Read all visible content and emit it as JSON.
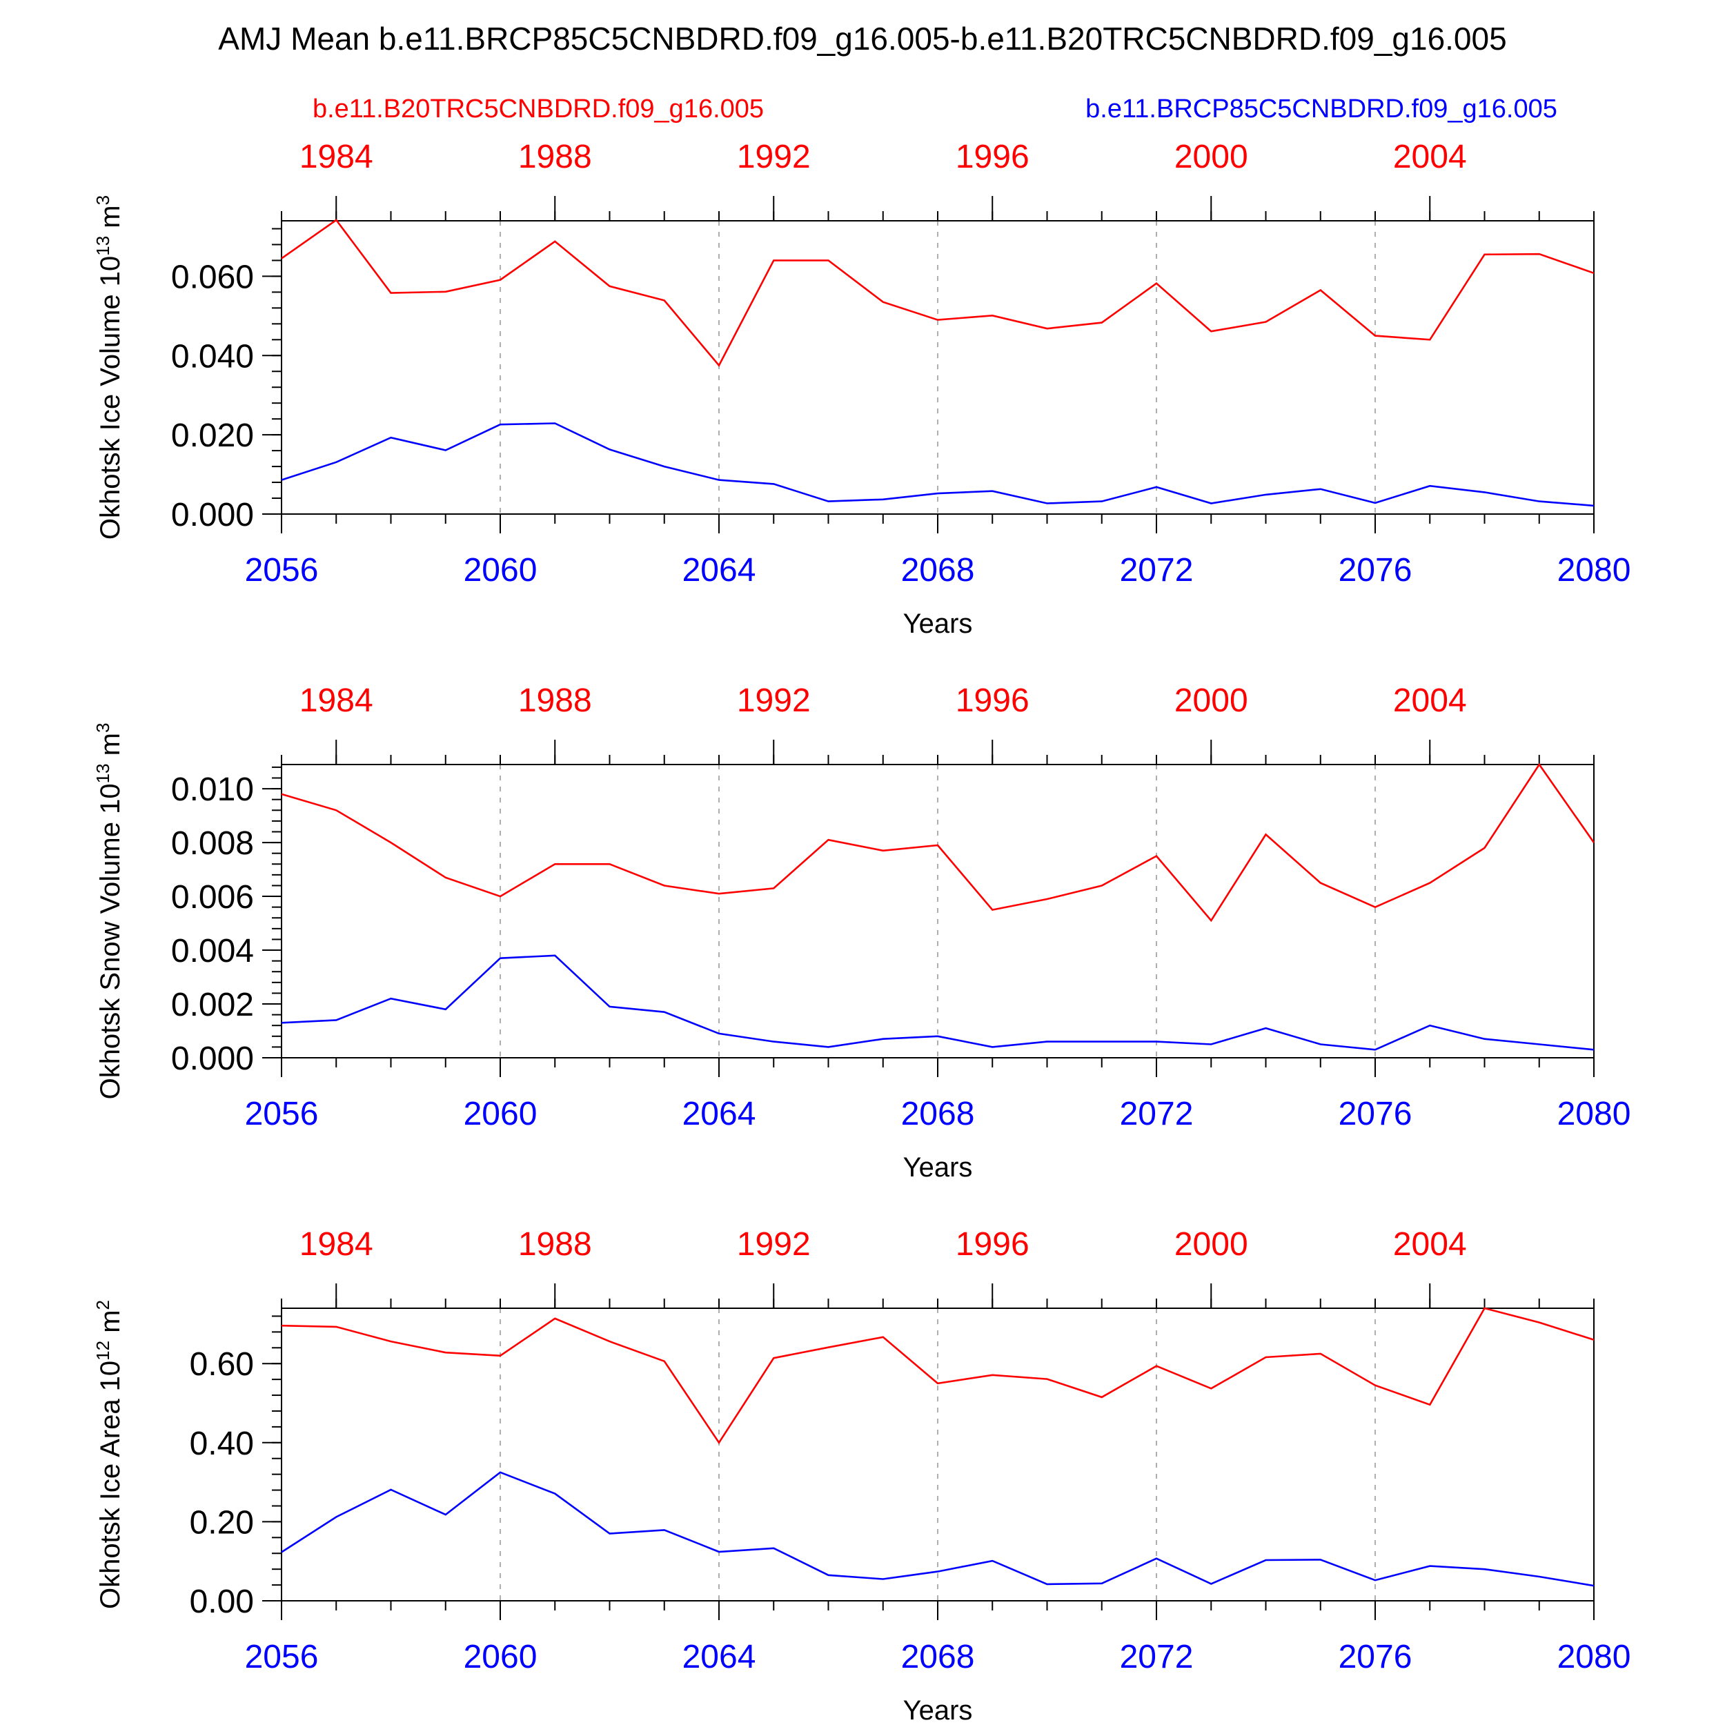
{
  "figure": {
    "title": "AMJ Mean b.e11.BRCP85C5CNBDRD.f09_g16.005-b.e11.B20TRC5CNBDRD.f09_g16.005",
    "legend_left": "b.e11.B20TRC5CNBDRD.f09_g16.005",
    "legend_right": "b.e11.BRCP85C5CNBDRD.f09_g16.005",
    "xlabel": "Years",
    "colors": {
      "historical": "#ff0000",
      "future": "#0000ff",
      "axis": "#000000",
      "grid": "#9a9a9a"
    }
  },
  "chart_data": [
    {
      "type": "line",
      "ylabel_main": "Okhotsk Ice Volume 10",
      "ylabel_exp": "13",
      "ylabel_unit": " m",
      "ylabel_unit_exp": "3",
      "ylim": [
        0,
        0.074
      ],
      "ytick_values": [
        0,
        0.02,
        0.04,
        0.06
      ],
      "ytick_labels": [
        "0.000",
        "0.020",
        "0.040",
        "0.060"
      ],
      "yminor_step": 0.004,
      "x_bottom": [
        2056,
        2057,
        2058,
        2059,
        2060,
        2061,
        2062,
        2063,
        2064,
        2065,
        2066,
        2067,
        2068,
        2069,
        2070,
        2071,
        2072,
        2073,
        2074,
        2075,
        2076,
        2077,
        2078,
        2079,
        2080
      ],
      "xtick_bottom": [
        2056,
        2060,
        2064,
        2068,
        2072,
        2076,
        2080
      ],
      "xtick_top": [
        1984,
        1988,
        1992,
        1996,
        2000,
        2004
      ],
      "x_top_offset": -73,
      "series": [
        {
          "name": "b.e11.B20TRC5CNBDRD.f09_g16.005",
          "color": "#ff0000",
          "values": [
            0.0645,
            0.0742,
            0.0558,
            0.0561,
            0.0591,
            0.0688,
            0.0575,
            0.0539,
            0.0375,
            0.064,
            0.064,
            0.0535,
            0.049,
            0.0501,
            0.0468,
            0.0483,
            0.0582,
            0.0461,
            0.0485,
            0.0565,
            0.045,
            0.044,
            0.0655,
            0.0656,
            0.0608
          ]
        },
        {
          "name": "b.e11.BRCP85C5CNBDRD.f09_g16.005",
          "color": "#0000ff",
          "values": [
            0.0086,
            0.0131,
            0.0193,
            0.0161,
            0.0226,
            0.0229,
            0.0163,
            0.012,
            0.0086,
            0.0076,
            0.0032,
            0.0037,
            0.0052,
            0.0058,
            0.0027,
            0.0032,
            0.0068,
            0.0027,
            0.0049,
            0.0063,
            0.0028,
            0.0071,
            0.0055,
            0.0032,
            0.0021
          ]
        }
      ]
    },
    {
      "type": "line",
      "ylabel_main": "Okhotsk Snow Volume 10",
      "ylabel_exp": "13",
      "ylabel_unit": " m",
      "ylabel_unit_exp": "3",
      "ylim": [
        0,
        0.0109
      ],
      "ytick_values": [
        0,
        0.002,
        0.004,
        0.006,
        0.008,
        0.01
      ],
      "ytick_labels": [
        "0.000",
        "0.002",
        "0.004",
        "0.006",
        "0.008",
        "0.010"
      ],
      "yminor_step": 0.0004,
      "x_bottom": [
        2056,
        2057,
        2058,
        2059,
        2060,
        2061,
        2062,
        2063,
        2064,
        2065,
        2066,
        2067,
        2068,
        2069,
        2070,
        2071,
        2072,
        2073,
        2074,
        2075,
        2076,
        2077,
        2078,
        2079,
        2080
      ],
      "xtick_bottom": [
        2056,
        2060,
        2064,
        2068,
        2072,
        2076,
        2080
      ],
      "xtick_top": [
        1984,
        1988,
        1992,
        1996,
        2000,
        2004
      ],
      "x_top_offset": -73,
      "series": [
        {
          "name": "b.e11.B20TRC5CNBDRD.f09_g16.005",
          "color": "#ff0000",
          "values": [
            0.0098,
            0.0092,
            0.008,
            0.0067,
            0.006,
            0.0072,
            0.0072,
            0.0064,
            0.0061,
            0.0063,
            0.0081,
            0.0077,
            0.0079,
            0.0055,
            0.0059,
            0.0064,
            0.0075,
            0.0051,
            0.0083,
            0.0065,
            0.0056,
            0.0065,
            0.0078,
            0.0109,
            0.008
          ]
        },
        {
          "name": "b.e11.BRCP85C5CNBDRD.f09_g16.005",
          "color": "#0000ff",
          "values": [
            0.0013,
            0.0014,
            0.0022,
            0.0018,
            0.0037,
            0.0038,
            0.0019,
            0.0017,
            0.0009,
            0.0006,
            0.0004,
            0.0007,
            0.0008,
            0.0004,
            0.0006,
            0.0006,
            0.0006,
            0.0005,
            0.0011,
            0.0005,
            0.0003,
            0.0012,
            0.0007,
            0.0005,
            0.0003
          ]
        }
      ]
    },
    {
      "type": "line",
      "ylabel_main": "Okhotsk Ice Area 10",
      "ylabel_exp": "12",
      "ylabel_unit": " m",
      "ylabel_unit_exp": "2",
      "ylim": [
        0,
        0.74
      ],
      "ytick_values": [
        0,
        0.2,
        0.4,
        0.6
      ],
      "ytick_labels": [
        "0.00",
        "0.20",
        "0.40",
        "0.60"
      ],
      "yminor_step": 0.04,
      "x_bottom": [
        2056,
        2057,
        2058,
        2059,
        2060,
        2061,
        2062,
        2063,
        2064,
        2065,
        2066,
        2067,
        2068,
        2069,
        2070,
        2071,
        2072,
        2073,
        2074,
        2075,
        2076,
        2077,
        2078,
        2079,
        2080
      ],
      "xtick_bottom": [
        2056,
        2060,
        2064,
        2068,
        2072,
        2076,
        2080
      ],
      "xtick_top": [
        1984,
        1988,
        1992,
        1996,
        2000,
        2004
      ],
      "x_top_offset": -73,
      "series": [
        {
          "name": "b.e11.B20TRC5CNBDRD.f09_g16.005",
          "color": "#ff0000",
          "values": [
            0.696,
            0.693,
            0.656,
            0.628,
            0.62,
            0.714,
            0.656,
            0.606,
            0.4,
            0.614,
            0.641,
            0.667,
            0.55,
            0.571,
            0.561,
            0.515,
            0.594,
            0.537,
            0.616,
            0.625,
            0.545,
            0.496,
            0.74,
            0.704,
            0.66
          ]
        },
        {
          "name": "b.e11.BRCP85C5CNBDRD.f09_g16.005",
          "color": "#0000ff",
          "values": [
            0.123,
            0.212,
            0.281,
            0.218,
            0.325,
            0.271,
            0.17,
            0.179,
            0.124,
            0.133,
            0.065,
            0.055,
            0.074,
            0.101,
            0.042,
            0.044,
            0.107,
            0.043,
            0.103,
            0.104,
            0.052,
            0.088,
            0.08,
            0.061,
            0.038
          ]
        }
      ]
    }
  ]
}
